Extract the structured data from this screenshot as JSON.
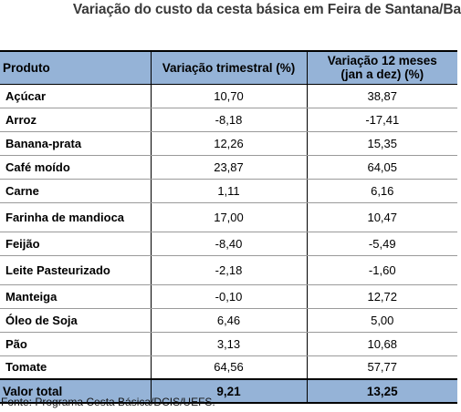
{
  "title": "Variação do custo da cesta básica em Feira de Santana/Ba",
  "table": {
    "headers": {
      "product": "Produto",
      "quarterly": "Variação trimestral (%)",
      "annual_line1": "Variação 12 meses",
      "annual_line2": "(jan a dez) (%)"
    },
    "rows": [
      {
        "product": "Açúcar",
        "quarterly": "10,70",
        "annual": "38,87"
      },
      {
        "product": "Arroz",
        "quarterly": "-8,18",
        "annual": "-17,41"
      },
      {
        "product": "Banana-prata",
        "quarterly": "12,26",
        "annual": "15,35"
      },
      {
        "product": "Café moído",
        "quarterly": "23,87",
        "annual": "64,05"
      },
      {
        "product": "Carne",
        "quarterly": "1,11",
        "annual": "6,16"
      },
      {
        "product": "Farinha de mandioca",
        "quarterly": "17,00",
        "annual": "10,47"
      },
      {
        "product": "Feijão",
        "quarterly": "-8,40",
        "annual": "-5,49"
      },
      {
        "product": "Leite Pasteurizado",
        "quarterly": "-2,18",
        "annual": "-1,60"
      },
      {
        "product": "Manteiga",
        "quarterly": "-0,10",
        "annual": "12,72"
      },
      {
        "product": "Óleo de Soja",
        "quarterly": "6,46",
        "annual": "5,00"
      },
      {
        "product": "Pão",
        "quarterly": "3,13",
        "annual": "10,68"
      },
      {
        "product": "Tomate",
        "quarterly": "64,56",
        "annual": "57,77"
      }
    ],
    "total": {
      "label": "Valor total",
      "quarterly": "9,21",
      "annual": "13,25"
    }
  },
  "source": "Fonte: Programa Cesta Básica/DCIS/UEFS.",
  "colors": {
    "header_bg": "#95b3d7",
    "title_text": "#3a3a3a"
  }
}
